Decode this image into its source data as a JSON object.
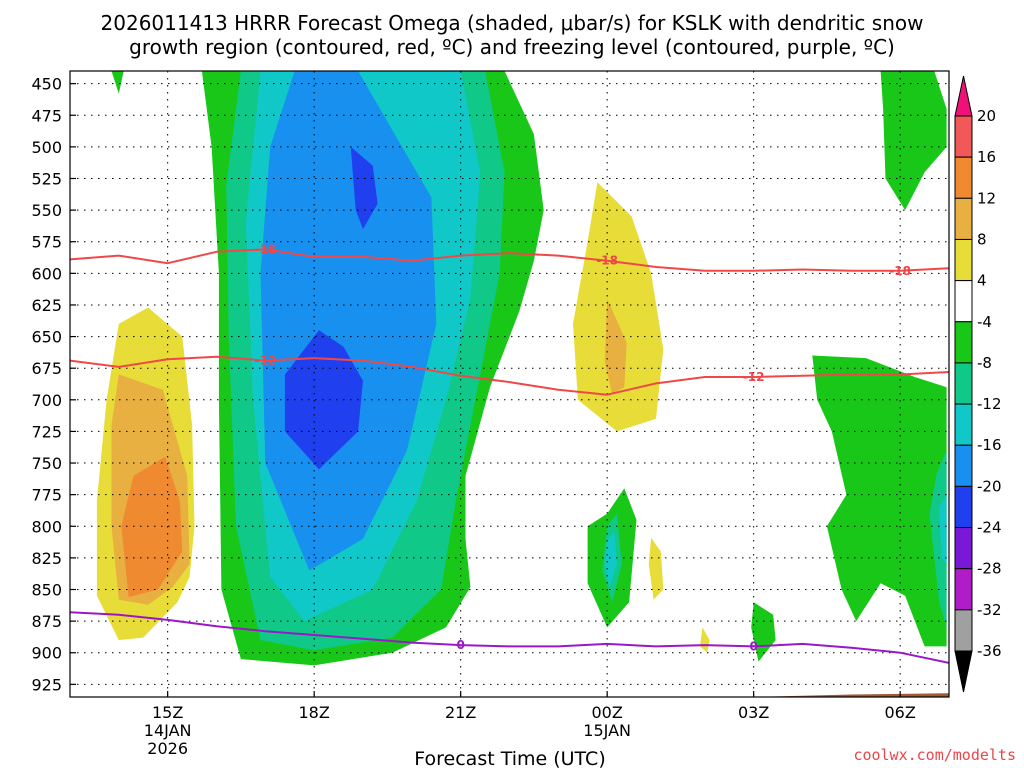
{
  "chart_data": {
    "type": "contour",
    "title_line1": "2026011413 HRRR Forecast Omega (shaded, μbar/s) for KSLK with dendritic snow",
    "title_line2": "growth region (contoured, red, ºC) and freezing level (contoured, purple, ºC)",
    "xlabel": "Forecast Time (UTC)",
    "ylabel": "",
    "credit": "coolwx.com/modelts",
    "y_axis": {
      "name": "pressure_hPa",
      "range": [
        440,
        935
      ],
      "ticks": [
        450,
        475,
        500,
        525,
        550,
        575,
        600,
        625,
        650,
        675,
        700,
        725,
        750,
        775,
        800,
        825,
        850,
        875,
        900,
        925
      ]
    },
    "x_axis": {
      "name": "forecast_hour_from_13Z_14Jan",
      "range": [
        0,
        18
      ],
      "ticks": [
        {
          "hour": 2,
          "label": "15Z",
          "date": "14JAN",
          "year": "2026"
        },
        {
          "hour": 5,
          "label": "18Z"
        },
        {
          "hour": 8,
          "label": "21Z"
        },
        {
          "hour": 11,
          "label": "00Z",
          "date": "15JAN"
        },
        {
          "hour": 14,
          "label": "03Z"
        },
        {
          "hour": 17,
          "label": "06Z"
        }
      ]
    },
    "colorbar": {
      "levels": [
        "20",
        "16",
        "12",
        "8",
        "4",
        "-4",
        "-8",
        "-12",
        "-16",
        "-20",
        "-24",
        "-28",
        "-32",
        "-36"
      ],
      "colors": [
        "#ee1177",
        "#f25858",
        "#f08a30",
        "#e8b040",
        "#e8dc38",
        "#ffffff",
        "#19c719",
        "#10c888",
        "#10c8c8",
        "#1890f0",
        "#2040f0",
        "#7a18d8",
        "#b01cc8",
        "#a0a0a0",
        "#000000"
      ]
    },
    "omega_regions": [
      {
        "level": -4,
        "color": "#19c719",
        "name": "main-ascent-green",
        "points": [
          [
            2.7,
            440
          ],
          [
            8.9,
            440
          ],
          [
            9.5,
            490
          ],
          [
            9.7,
            550
          ],
          [
            9.5,
            590
          ],
          [
            9.2,
            630
          ],
          [
            8.6,
            690
          ],
          [
            8.1,
            760
          ],
          [
            8.1,
            810
          ],
          [
            8.2,
            848
          ],
          [
            7.7,
            880
          ],
          [
            6.6,
            900
          ],
          [
            5.0,
            910
          ],
          [
            3.5,
            905
          ],
          [
            3.1,
            850
          ],
          [
            3.05,
            700
          ],
          [
            3.05,
            600
          ],
          [
            2.9,
            500
          ]
        ]
      },
      {
        "level": -8,
        "color": "#10c888",
        "name": "main-ascent-seagreen",
        "points": [
          [
            3.5,
            440
          ],
          [
            8.5,
            440
          ],
          [
            8.9,
            520
          ],
          [
            8.8,
            600
          ],
          [
            8.3,
            700
          ],
          [
            7.9,
            780
          ],
          [
            7.6,
            850
          ],
          [
            6.6,
            888
          ],
          [
            5.0,
            898
          ],
          [
            3.9,
            890
          ],
          [
            3.4,
            800
          ],
          [
            3.25,
            650
          ],
          [
            3.2,
            530
          ]
        ]
      },
      {
        "level": -12,
        "color": "#10c8c8",
        "name": "main-ascent-cyan",
        "points": [
          [
            3.9,
            440
          ],
          [
            8.0,
            440
          ],
          [
            8.4,
            520
          ],
          [
            8.2,
            620
          ],
          [
            7.7,
            700
          ],
          [
            7.1,
            780
          ],
          [
            6.2,
            850
          ],
          [
            4.8,
            875
          ],
          [
            4.1,
            840
          ],
          [
            3.75,
            700
          ],
          [
            3.6,
            560
          ]
        ]
      },
      {
        "level": -16,
        "color": "#1890f0",
        "name": "main-ascent-blue",
        "points": [
          [
            4.6,
            440
          ],
          [
            5.9,
            440
          ],
          [
            7.4,
            540
          ],
          [
            7.5,
            640
          ],
          [
            6.9,
            740
          ],
          [
            6.0,
            810
          ],
          [
            4.9,
            835
          ],
          [
            4.0,
            750
          ],
          [
            3.9,
            600
          ],
          [
            4.1,
            500
          ]
        ]
      },
      {
        "level": -20,
        "color": "#2040f0",
        "name": "max-ascent-upper",
        "points": [
          [
            5.75,
            500
          ],
          [
            6.2,
            515
          ],
          [
            6.3,
            545
          ],
          [
            6.0,
            565
          ],
          [
            5.85,
            550
          ],
          [
            5.8,
            525
          ]
        ]
      },
      {
        "level": -20,
        "color": "#2040f0",
        "name": "max-ascent-lower",
        "points": [
          [
            5.1,
            645
          ],
          [
            5.6,
            658
          ],
          [
            6.0,
            685
          ],
          [
            5.9,
            725
          ],
          [
            5.1,
            755
          ],
          [
            4.4,
            725
          ],
          [
            4.4,
            680
          ]
        ]
      },
      {
        "level": -4,
        "color": "#19c719",
        "name": "top-left-sliver",
        "points": [
          [
            0.85,
            440
          ],
          [
            1.1,
            440
          ],
          [
            1.0,
            458
          ]
        ]
      },
      {
        "level": -4,
        "color": "#19c719",
        "name": "top-right-green",
        "points": [
          [
            16.6,
            440
          ],
          [
            17.7,
            440
          ],
          [
            17.95,
            470
          ],
          [
            17.95,
            500
          ],
          [
            17.5,
            520
          ],
          [
            17.1,
            550
          ],
          [
            16.7,
            525
          ],
          [
            16.65,
            470
          ]
        ]
      },
      {
        "level": -4,
        "color": "#19c719",
        "name": "right-lower-green",
        "points": [
          [
            15.2,
            665
          ],
          [
            16.3,
            667
          ],
          [
            17.3,
            682
          ],
          [
            17.95,
            690
          ],
          [
            17.95,
            895
          ],
          [
            17.5,
            895
          ],
          [
            17.1,
            855
          ],
          [
            16.6,
            845
          ],
          [
            16.1,
            875
          ],
          [
            15.8,
            850
          ],
          [
            15.5,
            800
          ],
          [
            15.9,
            775
          ],
          [
            15.6,
            725
          ],
          [
            15.3,
            700
          ]
        ]
      },
      {
        "level": -8,
        "color": "#10c888",
        "name": "right-edge-seagreen",
        "points": [
          [
            17.75,
            758
          ],
          [
            17.95,
            740
          ],
          [
            17.95,
            880
          ],
          [
            17.8,
            860
          ],
          [
            17.6,
            790
          ]
        ]
      },
      {
        "level": -12,
        "color": "#10c8c8",
        "name": "right-edge-cyan",
        "points": [
          [
            17.8,
            785
          ],
          [
            17.95,
            775
          ],
          [
            17.95,
            830
          ],
          [
            17.85,
            825
          ]
        ]
      },
      {
        "level": -4,
        "color": "#19c719",
        "name": "small-green-00z",
        "points": [
          [
            11.0,
            790
          ],
          [
            11.35,
            770
          ],
          [
            11.6,
            795
          ],
          [
            11.45,
            860
          ],
          [
            11.0,
            880
          ],
          [
            10.6,
            845
          ],
          [
            10.6,
            800
          ]
        ]
      },
      {
        "level": -8,
        "color": "#10c888",
        "name": "small-seagreen-00z",
        "points": [
          [
            11.0,
            800
          ],
          [
            11.2,
            790
          ],
          [
            11.3,
            830
          ],
          [
            11.1,
            860
          ],
          [
            10.9,
            835
          ]
        ]
      },
      {
        "level": -12,
        "color": "#10c8c8",
        "name": "small-cyan-00z",
        "points": [
          [
            11.0,
            810
          ],
          [
            11.15,
            805
          ],
          [
            11.2,
            830
          ],
          [
            11.05,
            848
          ],
          [
            10.95,
            830
          ]
        ]
      },
      {
        "level": -4,
        "color": "#19c719",
        "name": "small-green-03z",
        "points": [
          [
            14.0,
            860
          ],
          [
            14.4,
            870
          ],
          [
            14.45,
            890
          ],
          [
            14.1,
            907
          ],
          [
            13.95,
            880
          ]
        ]
      },
      {
        "level": 4,
        "color": "#e8dc38",
        "name": "upward-motion-15z",
        "points": [
          [
            1.0,
            640
          ],
          [
            1.6,
            627
          ],
          [
            2.3,
            650
          ],
          [
            2.5,
            720
          ],
          [
            2.55,
            800
          ],
          [
            2.45,
            840
          ],
          [
            2.2,
            860
          ],
          [
            1.5,
            888
          ],
          [
            1.0,
            890
          ],
          [
            0.55,
            855
          ],
          [
            0.55,
            780
          ],
          [
            0.75,
            700
          ]
        ]
      },
      {
        "level": 8,
        "color": "#e8b040",
        "name": "upward-motion-15z-8",
        "points": [
          [
            1.0,
            680
          ],
          [
            1.9,
            692
          ],
          [
            2.4,
            760
          ],
          [
            2.45,
            830
          ],
          [
            2.1,
            848
          ],
          [
            1.6,
            862
          ],
          [
            1.0,
            858
          ],
          [
            0.85,
            800
          ],
          [
            0.85,
            720
          ]
        ]
      },
      {
        "level": 12,
        "color": "#f08a30",
        "name": "upward-motion-15z-12",
        "points": [
          [
            1.3,
            760
          ],
          [
            1.95,
            745
          ],
          [
            2.25,
            780
          ],
          [
            2.3,
            820
          ],
          [
            1.8,
            850
          ],
          [
            1.2,
            856
          ],
          [
            1.05,
            800
          ]
        ]
      },
      {
        "level": 4,
        "color": "#e8dc38",
        "name": "upward-motion-00z",
        "points": [
          [
            10.8,
            528
          ],
          [
            11.5,
            555
          ],
          [
            11.9,
            600
          ],
          [
            12.15,
            660
          ],
          [
            12.0,
            715
          ],
          [
            11.2,
            725
          ],
          [
            10.4,
            700
          ],
          [
            10.3,
            640
          ],
          [
            10.6,
            575
          ]
        ]
      },
      {
        "level": 8,
        "color": "#e8b040",
        "name": "upward-motion-00z-8",
        "points": [
          [
            11.0,
            620
          ],
          [
            11.4,
            655
          ],
          [
            11.35,
            690
          ],
          [
            11.1,
            695
          ],
          [
            10.95,
            670
          ]
        ]
      },
      {
        "level": 4,
        "color": "#e8dc38",
        "name": "small-yellow-01z",
        "points": [
          [
            11.9,
            809
          ],
          [
            12.1,
            820
          ],
          [
            12.15,
            850
          ],
          [
            11.95,
            858
          ],
          [
            11.85,
            830
          ]
        ]
      },
      {
        "level": 4,
        "color": "#e8dc38",
        "name": "small-yellow-02z",
        "points": [
          [
            12.95,
            880
          ],
          [
            13.1,
            890
          ],
          [
            13.05,
            900
          ],
          [
            12.9,
            895
          ]
        ]
      }
    ],
    "dgz_contours": [
      {
        "name": "dgz-minus18-line",
        "label": "-18",
        "label_at_index": [
          4,
          11,
          17
        ],
        "points": [
          [
            0,
            589
          ],
          [
            1,
            586
          ],
          [
            2,
            592
          ],
          [
            3,
            583
          ],
          [
            4,
            581
          ],
          [
            5,
            587
          ],
          [
            6,
            587
          ],
          [
            7,
            590
          ],
          [
            8,
            586
          ],
          [
            9,
            584
          ],
          [
            10,
            586
          ],
          [
            11,
            590
          ],
          [
            12,
            595
          ],
          [
            13,
            598
          ],
          [
            14,
            598
          ],
          [
            15,
            597
          ],
          [
            16,
            598
          ],
          [
            17,
            598
          ],
          [
            18,
            596
          ]
        ]
      },
      {
        "name": "dgz-minus12-line",
        "label": "-12",
        "label_at_index": [
          4,
          14
        ],
        "points": [
          [
            0,
            669
          ],
          [
            1,
            674
          ],
          [
            2,
            668
          ],
          [
            3,
            666
          ],
          [
            4,
            669
          ],
          [
            5,
            667
          ],
          [
            6,
            669
          ],
          [
            7,
            674
          ],
          [
            8,
            681
          ],
          [
            9,
            686
          ],
          [
            10,
            692
          ],
          [
            11,
            696
          ],
          [
            12,
            687
          ],
          [
            13,
            682
          ],
          [
            14,
            682
          ],
          [
            15,
            681
          ],
          [
            16,
            680
          ],
          [
            17,
            680
          ],
          [
            18,
            678
          ]
        ]
      }
    ],
    "freezing_level": {
      "name": "freezing-level-line",
      "label": "0",
      "label_at_index": [
        8,
        14
      ],
      "points": [
        [
          0,
          868
        ],
        [
          1,
          870
        ],
        [
          2,
          874
        ],
        [
          3,
          879
        ],
        [
          4,
          883
        ],
        [
          5,
          886
        ],
        [
          6,
          889
        ],
        [
          7,
          892
        ],
        [
          8,
          894
        ],
        [
          9,
          895
        ],
        [
          10,
          895
        ],
        [
          11,
          893
        ],
        [
          12,
          895
        ],
        [
          13,
          894
        ],
        [
          14,
          895
        ],
        [
          15,
          893
        ],
        [
          16,
          896
        ],
        [
          17,
          900
        ],
        [
          18,
          908
        ]
      ]
    },
    "terrain": {
      "name": "ground-surface",
      "color": "#a05a36",
      "points": [
        [
          0,
          937
        ],
        [
          13,
          937
        ],
        [
          14,
          935
        ],
        [
          16,
          933
        ],
        [
          18,
          932
        ]
      ]
    }
  }
}
